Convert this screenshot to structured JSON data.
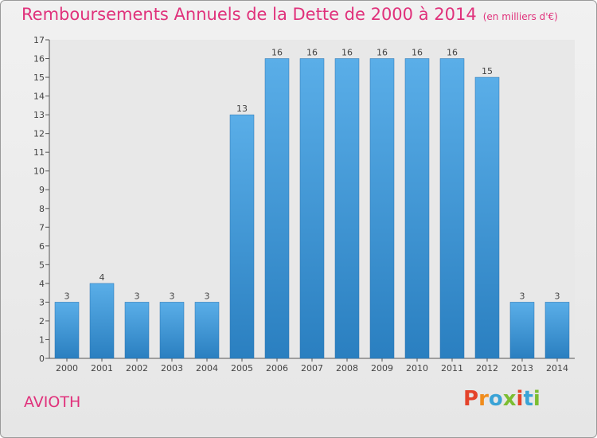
{
  "title": "Remboursements Annuels de la Dette de 2000 à 2014",
  "title_unit": "(en milliers d'€)",
  "commune": "AVIOTH",
  "brand": {
    "text": "Proxiti",
    "letters": [
      "P",
      "r",
      "o",
      "x",
      "i",
      "t",
      "i"
    ],
    "colors": [
      "#e4432b",
      "#f08c1c",
      "#3aa3d6",
      "#7cbd31",
      "#e4432b",
      "#3aa3d6",
      "#7cbd31"
    ]
  },
  "colors": {
    "accent": "#e0317b",
    "bar_top": "#5aaee8",
    "bar_bottom": "#2a7fc0"
  },
  "chart_data": {
    "type": "bar",
    "categories": [
      "2000",
      "2001",
      "2002",
      "2003",
      "2004",
      "2005",
      "2006",
      "2007",
      "2008",
      "2009",
      "2010",
      "2011",
      "2012",
      "2013",
      "2014"
    ],
    "values": [
      3,
      4,
      3,
      3,
      3,
      13,
      16,
      16,
      16,
      16,
      16,
      16,
      15,
      3,
      3
    ],
    "ylim": [
      0,
      17
    ],
    "yticks": [
      0,
      1,
      2,
      3,
      4,
      5,
      6,
      7,
      8,
      9,
      10,
      11,
      12,
      13,
      14,
      15,
      16,
      17
    ],
    "xlabel": "",
    "ylabel": "",
    "grid": false,
    "data_labels": true
  }
}
